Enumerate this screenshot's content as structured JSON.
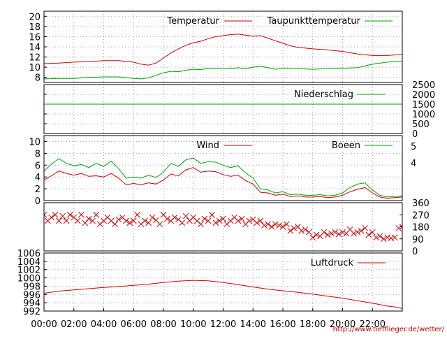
{
  "chart_data": [
    {
      "type": "line",
      "panel": "temperature",
      "title": "",
      "ylim": [
        7,
        21
      ],
      "yticks": [
        8,
        10,
        12,
        14,
        16,
        18,
        20
      ],
      "grid": true,
      "legend_position": "top-right",
      "series": [
        {
          "name": "Temperatur",
          "color": "#cc0000",
          "x": [
            0,
            1,
            2,
            3,
            4,
            5,
            6,
            6.5,
            7,
            7.5,
            8,
            8.5,
            9,
            9.5,
            10,
            10.5,
            11,
            11.5,
            12,
            12.5,
            13,
            13.5,
            14,
            14.5,
            15,
            15.5,
            16,
            16.5,
            17,
            18,
            19,
            20,
            21,
            22,
            23,
            24
          ],
          "y": [
            10.7,
            10.8,
            11.0,
            11.1,
            11.3,
            11.3,
            11.0,
            10.6,
            10.4,
            10.8,
            11.8,
            12.8,
            13.6,
            14.3,
            14.8,
            15.1,
            15.6,
            16.0,
            16.2,
            16.4,
            16.5,
            16.3,
            16.1,
            16.2,
            15.7,
            15.2,
            14.7,
            14.2,
            13.9,
            13.6,
            13.4,
            13.1,
            12.6,
            12.3,
            12.3,
            12.5
          ]
        },
        {
          "name": "Taupunkttemperatur",
          "color": "#00a000",
          "x": [
            0,
            1,
            2,
            3,
            4,
            5,
            6,
            6.5,
            7,
            7.5,
            8,
            8.5,
            9,
            9.5,
            10,
            10.5,
            11,
            11.5,
            12,
            12.5,
            13,
            13.5,
            14,
            14.5,
            15,
            15.5,
            16,
            16.5,
            17,
            18,
            19,
            20,
            21,
            22,
            23,
            24
          ],
          "y": [
            7.7,
            7.8,
            7.8,
            8.0,
            8.1,
            8.1,
            7.8,
            7.7,
            7.9,
            8.4,
            8.9,
            9.2,
            9.1,
            9.4,
            9.6,
            9.5,
            9.8,
            9.8,
            9.7,
            9.7,
            9.9,
            9.7,
            10.0,
            10.2,
            9.9,
            9.6,
            9.8,
            9.7,
            9.7,
            9.6,
            9.7,
            9.8,
            9.9,
            10.6,
            11.0,
            11.2
          ]
        }
      ]
    },
    {
      "type": "line",
      "panel": "precipitation",
      "ylim": [
        0,
        2500
      ],
      "yticks": [
        0,
        500,
        1000,
        1500,
        2000,
        2500
      ],
      "legend_position": "top-right",
      "series": [
        {
          "name": "Niederschlag",
          "color": "#00a000",
          "x": [
            0,
            24
          ],
          "y": [
            1500,
            1500
          ]
        }
      ]
    },
    {
      "type": "line",
      "panel": "wind",
      "ylim": [
        0,
        11
      ],
      "yticks": [
        0,
        2,
        4,
        6,
        8,
        10
      ],
      "right_ticks": [
        "5",
        "4"
      ],
      "legend_position": "top-right",
      "series": [
        {
          "name": "Wind",
          "color": "#cc0000",
          "x": [
            0,
            0.5,
            1,
            1.5,
            2,
            2.5,
            3,
            3.5,
            4,
            4.5,
            5,
            5.5,
            6,
            6.5,
            7,
            7.5,
            8,
            8.5,
            9,
            9.5,
            10,
            10.5,
            11,
            11.5,
            12,
            12.5,
            13,
            13.5,
            14,
            14.5,
            15,
            15.5,
            16,
            16.5,
            17,
            17.5,
            18,
            18.5,
            19,
            19.5,
            20,
            20.5,
            21,
            21.5,
            22,
            22.5,
            23,
            23.5,
            24
          ],
          "y": [
            3.5,
            4.2,
            5.0,
            4.6,
            4.3,
            4.6,
            4.1,
            4.2,
            4.0,
            4.6,
            3.8,
            2.7,
            2.9,
            2.7,
            3.0,
            2.8,
            3.5,
            4.5,
            4.2,
            5.2,
            5.6,
            4.8,
            5.0,
            4.9,
            4.4,
            4.1,
            4.3,
            3.4,
            2.8,
            1.4,
            1.3,
            0.9,
            1.1,
            0.7,
            0.8,
            0.6,
            0.6,
            0.7,
            0.5,
            0.6,
            0.9,
            1.5,
            1.9,
            2.2,
            1.3,
            0.6,
            0.4,
            0.5,
            0.6
          ]
        },
        {
          "name": "Boeen",
          "color": "#00a000",
          "x": [
            0,
            0.5,
            1,
            1.5,
            2,
            2.5,
            3,
            3.5,
            4,
            4.5,
            5,
            5.5,
            6,
            6.5,
            7,
            7.5,
            8,
            8.5,
            9,
            9.5,
            10,
            10.5,
            11,
            11.5,
            12,
            12.5,
            13,
            13.5,
            14,
            14.5,
            15,
            15.5,
            16,
            16.5,
            17,
            17.5,
            18,
            18.5,
            19,
            19.5,
            20,
            20.5,
            21,
            21.5,
            22,
            22.5,
            23,
            23.5,
            24
          ],
          "y": [
            5.0,
            6.2,
            7.1,
            6.3,
            5.9,
            6.1,
            5.6,
            6.3,
            5.8,
            6.7,
            5.4,
            3.8,
            4.0,
            3.8,
            4.3,
            3.9,
            4.8,
            6.3,
            5.8,
            6.9,
            7.2,
            6.3,
            6.6,
            6.5,
            6.0,
            5.6,
            5.9,
            4.7,
            3.8,
            2.0,
            1.8,
            1.3,
            1.5,
            1.0,
            1.1,
            0.9,
            0.9,
            1.0,
            0.8,
            0.9,
            1.3,
            2.2,
            2.8,
            3.0,
            1.8,
            0.9,
            0.6,
            0.7,
            0.8
          ]
        }
      ]
    },
    {
      "type": "scatter",
      "panel": "wind-direction",
      "ylim": [
        0,
        360
      ],
      "yticks_right": [
        0,
        90,
        180,
        270,
        360
      ],
      "marker": "x",
      "color": "#cc0000",
      "x": [
        0,
        0.25,
        0.5,
        0.75,
        1,
        1.25,
        1.5,
        1.75,
        2,
        2.25,
        2.5,
        2.75,
        3,
        3.25,
        3.5,
        3.75,
        4,
        4.25,
        4.5,
        4.75,
        5,
        5.25,
        5.5,
        5.75,
        6,
        6.25,
        6.5,
        6.75,
        7,
        7.25,
        7.5,
        7.75,
        8,
        8.25,
        8.5,
        8.75,
        9,
        9.25,
        9.5,
        9.75,
        10,
        10.25,
        10.5,
        10.75,
        11,
        11.25,
        11.5,
        11.75,
        12,
        12.25,
        12.5,
        12.75,
        13,
        13.25,
        13.5,
        13.75,
        14,
        14.25,
        14.5,
        14.75,
        15,
        15.25,
        15.5,
        15.75,
        16,
        16.25,
        16.5,
        16.75,
        17,
        17.25,
        17.5,
        17.75,
        18,
        18.25,
        18.5,
        18.75,
        19,
        19.25,
        19.5,
        19.75,
        20,
        20.25,
        20.5,
        20.75,
        21,
        21.25,
        21.5,
        21.75,
        22,
        22.25,
        22.5,
        22.75,
        23,
        23.25,
        23.5,
        23.75,
        24
      ],
      "y": [
        270,
        225,
        250,
        270,
        225,
        260,
        225,
        270,
        250,
        225,
        270,
        210,
        240,
        225,
        270,
        200,
        225,
        250,
        225,
        200,
        235,
        250,
        225,
        210,
        225,
        270,
        200,
        225,
        210,
        250,
        230,
        200,
        270,
        240,
        225,
        250,
        235,
        210,
        260,
        225,
        250,
        225,
        200,
        240,
        225,
        270,
        210,
        225,
        240,
        200,
        225,
        250,
        225,
        240,
        200,
        225,
        235,
        210,
        225,
        190,
        200,
        180,
        200,
        190,
        180,
        200,
        150,
        170,
        180,
        150,
        160,
        140,
        100,
        120,
        110,
        140,
        120,
        130,
        140,
        125,
        140,
        130,
        160,
        130,
        140,
        150,
        170,
        120,
        140,
        100,
        110,
        90,
        100,
        95,
        100,
        170,
        180
      ]
    },
    {
      "type": "line",
      "panel": "pressure",
      "ylim": [
        992,
        1006
      ],
      "yticks": [
        992,
        994,
        996,
        998,
        1000,
        1002,
        1004,
        1006
      ],
      "legend_position": "top-right",
      "series": [
        {
          "name": "Luftdruck",
          "color": "#cc0000",
          "x": [
            0,
            1,
            2,
            3,
            4,
            5,
            6,
            7,
            8,
            9,
            10,
            11,
            12,
            13,
            14,
            15,
            16,
            17,
            18,
            19,
            20,
            21,
            22,
            23,
            23.5,
            24
          ],
          "y": [
            996.3,
            996.8,
            997.1,
            997.4,
            997.7,
            997.9,
            998.2,
            998.5,
            998.9,
            999.2,
            999.4,
            999.3,
            998.9,
            998.4,
            997.8,
            997.3,
            996.9,
            996.5,
            996.1,
            995.6,
            995.1,
            994.5,
            993.9,
            993.2,
            993.0,
            992.6
          ]
        }
      ]
    }
  ],
  "xaxis": {
    "range": [
      0,
      24
    ],
    "tick_labels": [
      "00:00",
      "02:00",
      "04:00",
      "06:00",
      "08:00",
      "10:00",
      "12:00",
      "14:00",
      "16:00",
      "18:00",
      "20:00",
      "22:00"
    ]
  },
  "source_url": "http://www.tiefflieger.de/wetter/",
  "colors": {
    "red": "#cc0000",
    "green": "#00a000",
    "grid": "#a0a0a0"
  }
}
